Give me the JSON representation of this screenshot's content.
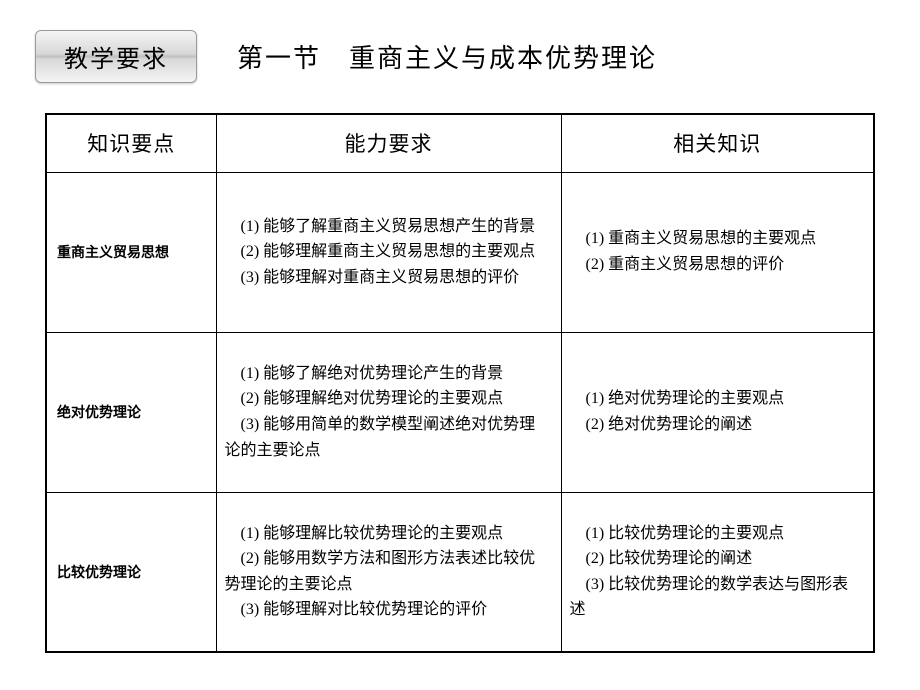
{
  "header": {
    "badge": "教学要求",
    "title": "第一节　重商主义与成本优势理论"
  },
  "table": {
    "columns": [
      "知识要点",
      "能力要求",
      "相关知识"
    ],
    "rows": [
      {
        "label": "重商主义贸易思想",
        "ability": [
          "(1) 能够了解重商主义贸易思想产生的背景",
          "(2) 能够理解重商主义贸易思想的主要观点",
          "(3) 能够理解对重商主义贸易思想的评价"
        ],
        "related": [
          "(1) 重商主义贸易思想的主要观点",
          "(2) 重商主义贸易思想的评价"
        ]
      },
      {
        "label": "绝对优势理论",
        "ability": [
          "(1) 能够了解绝对优势理论产生的背景",
          "(2) 能够理解绝对优势理论的主要观点",
          "(3) 能够用简单的数学模型阐述绝对优势理论的主要论点"
        ],
        "related": [
          "(1) 绝对优势理论的主要观点",
          "(2) 绝对优势理论的阐述"
        ]
      },
      {
        "label": "比较优势理论",
        "ability": [
          "(1) 能够理解比较优势理论的主要观点",
          "(2) 能够用数学方法和图形方法表述比较优势理论的主要论点",
          "(3) 能够理解对比较优势理论的评价"
        ],
        "related": [
          "(1) 比较优势理论的主要观点",
          "(2) 比较优势理论的阐述",
          "(3) 比较优势理论的数学表达与图形表述"
        ]
      }
    ]
  }
}
